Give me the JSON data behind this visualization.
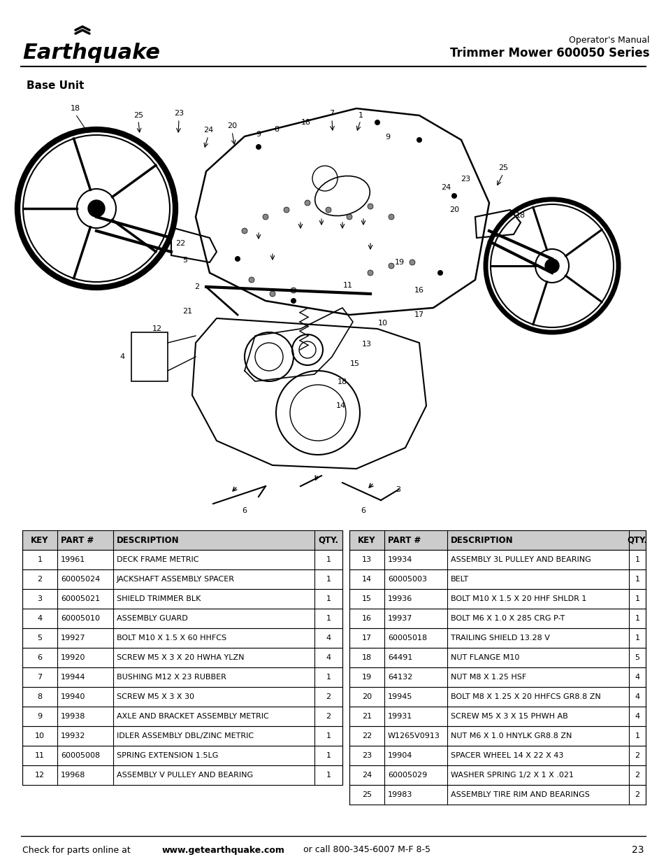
{
  "page_background": "#ffffff",
  "header": {
    "operator_manual": "Operator's Manual",
    "product_title": "Trimmer Mower 600050 Series"
  },
  "section_title": "Base Unit",
  "footer_text": "Check for parts online at ",
  "footer_bold": "www.getearthquake.com",
  "footer_rest": " or call 800-345-6007 M-F 8-5",
  "page_number": "23",
  "table_left": {
    "headers": [
      "KEY",
      "PART #",
      "DESCRIPTION",
      "QTY."
    ],
    "rows": [
      [
        "1",
        "19961",
        "DECK FRAME METRIC",
        "1"
      ],
      [
        "2",
        "60005024",
        "JACKSHAFT ASSEMBLY SPACER",
        "1"
      ],
      [
        "3",
        "60005021",
        "SHIELD TRIMMER BLK",
        "1"
      ],
      [
        "4",
        "60005010",
        "ASSEMBLY GUARD",
        "1"
      ],
      [
        "5",
        "19927",
        "BOLT M10 X 1.5 X 60 HHFCS",
        "4"
      ],
      [
        "6",
        "19920",
        "SCREW M5 X 3 X 20 HWHA YLZN",
        "4"
      ],
      [
        "7",
        "19944",
        "BUSHING M12 X 23 RUBBER",
        "1"
      ],
      [
        "8",
        "19940",
        "SCREW M5 X 3 X 30",
        "2"
      ],
      [
        "9",
        "19938",
        "AXLE AND BRACKET ASSEMBLY METRIC",
        "2"
      ],
      [
        "10",
        "19932",
        "IDLER ASSEMBLY DBL/ZINC METRIC",
        "1"
      ],
      [
        "11",
        "60005008",
        "SPRING EXTENSION 1.5LG",
        "1"
      ],
      [
        "12",
        "19968",
        "ASSEMBLY V PULLEY AND BEARING",
        "1"
      ]
    ]
  },
  "table_right": {
    "headers": [
      "KEY",
      "PART #",
      "DESCRIPTION",
      "QTY."
    ],
    "rows": [
      [
        "13",
        "19934",
        "ASSEMBLY 3L PULLEY AND BEARING",
        "1"
      ],
      [
        "14",
        "60005003",
        "BELT",
        "1"
      ],
      [
        "15",
        "19936",
        "BOLT M10 X 1.5 X 20 HHF SHLDR 1",
        "1"
      ],
      [
        "16",
        "19937",
        "BOLT M6 X 1.0 X 285 CRG P-T",
        "1"
      ],
      [
        "17",
        "60005018",
        "TRAILING SHIELD 13.28 V",
        "1"
      ],
      [
        "18",
        "64491",
        "NUT FLANGE M10",
        "5"
      ],
      [
        "19",
        "64132",
        "NUT M8 X 1.25 HSF",
        "4"
      ],
      [
        "20",
        "19945",
        "BOLT M8 X 1.25 X 20 HHFCS GR8.8 ZN",
        "4"
      ],
      [
        "21",
        "19931",
        "SCREW M5 X 3 X 15 PHWH AB",
        "4"
      ],
      [
        "22",
        "W1265V0913",
        "NUT M6 X 1.0 HNYLK GR8.8 ZN",
        "1"
      ],
      [
        "23",
        "19904",
        "SPACER WHEEL 14 X 22 X 43",
        "2"
      ],
      [
        "24",
        "60005029",
        "WASHER SPRING 1/2 X 1 X .021",
        "2"
      ],
      [
        "25",
        "19983",
        "ASSEMBLY TIRE RIM AND BEARINGS",
        "2"
      ]
    ]
  },
  "header_bg": "#cccccc",
  "header_font_size": 8.5,
  "row_font_size": 8.0
}
